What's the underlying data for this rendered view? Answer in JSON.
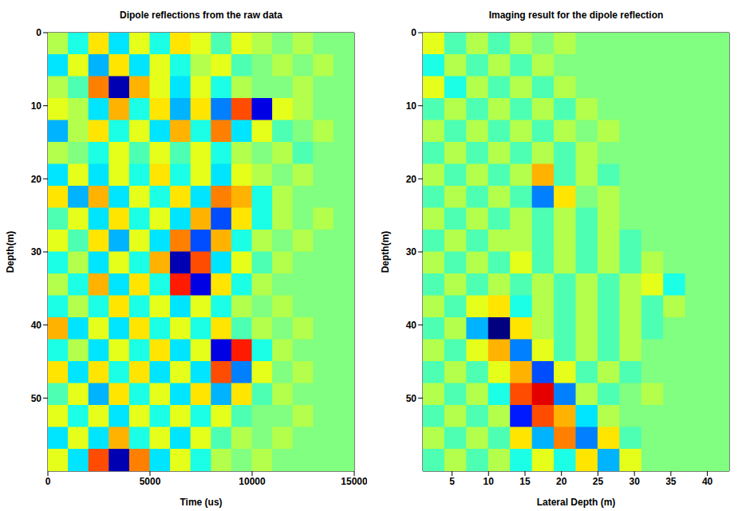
{
  "chart_data": [
    {
      "type": "heatmap",
      "title": "Dipole reflections from the raw data",
      "x_label": "Time (us)",
      "y_label": "Depth(m)",
      "xlim": [
        0,
        15000
      ],
      "xticks": [
        0,
        5000,
        10000,
        15000
      ],
      "ylim": [
        0,
        60
      ],
      "yticks": [
        0,
        10,
        20,
        30,
        40,
        50
      ],
      "zlim": [
        -1,
        1
      ],
      "x": [
        500,
        1500,
        2500,
        3500,
        4500,
        5500,
        6500,
        7500,
        8500,
        9500,
        10500,
        11500,
        12500,
        13500,
        14500
      ],
      "y": [
        1.5,
        4.5,
        7.5,
        10.5,
        13.5,
        16.5,
        19.5,
        22.5,
        25.5,
        28.5,
        31.5,
        34.5,
        37.5,
        40.5,
        43.5,
        46.5,
        49.5,
        52.5,
        55.5,
        58.5
      ],
      "z": [
        [
          0.1,
          -0.2,
          0.3,
          -0.3,
          0.2,
          -0.2,
          0.3,
          0.2,
          -0.1,
          0.2,
          0.1,
          0,
          0.1,
          0,
          0
        ],
        [
          -0.3,
          0.2,
          -0.4,
          0.3,
          -0.3,
          0.2,
          -0.2,
          0.1,
          0.2,
          -0.1,
          0,
          0.1,
          0,
          0.1,
          0
        ],
        [
          0.1,
          -0.1,
          0.5,
          -0.9,
          0.4,
          0.2,
          -0.3,
          0.2,
          -0.2,
          0.1,
          0,
          0,
          0.1,
          0,
          0
        ],
        [
          0.2,
          0.1,
          -0.3,
          0.4,
          -0.2,
          0.3,
          -0.4,
          0.3,
          -0.5,
          0.6,
          -0.8,
          0.2,
          0.1,
          0,
          0
        ],
        [
          -0.4,
          0.1,
          0.3,
          -0.2,
          0.2,
          -0.3,
          0.4,
          -0.2,
          0.5,
          -0.3,
          0.2,
          -0.1,
          0,
          0.1,
          0
        ],
        [
          0.1,
          0,
          -0.2,
          0.2,
          -0.1,
          0.2,
          -0.1,
          0.2,
          -0.2,
          0.1,
          0,
          0.1,
          -0.1,
          0,
          0
        ],
        [
          -0.3,
          0.2,
          -0.3,
          0.2,
          -0.2,
          0.3,
          -0.2,
          0.2,
          -0.3,
          0.2,
          0.1,
          0,
          0.1,
          0,
          0
        ],
        [
          0.3,
          -0.4,
          0.4,
          -0.3,
          0.2,
          -0.2,
          0.3,
          -0.3,
          0.5,
          0.4,
          -0.2,
          0.1,
          0,
          0,
          0
        ],
        [
          -0.1,
          0.2,
          -0.3,
          0.3,
          -0.2,
          0.2,
          -0.3,
          0.4,
          -0.6,
          0.3,
          -0.2,
          0.1,
          0,
          0.1,
          0
        ],
        [
          0.2,
          -0.1,
          0.3,
          -0.4,
          0.2,
          -0.3,
          0.5,
          -0.6,
          0.4,
          -0.2,
          0.1,
          0,
          0.1,
          0,
          0
        ],
        [
          -0.2,
          0.1,
          -0.3,
          0.2,
          -0.2,
          0.4,
          -0.9,
          0.6,
          -0.3,
          0.2,
          -0.1,
          0.1,
          0,
          0,
          0
        ],
        [
          0.1,
          -0.2,
          0.4,
          -0.3,
          0.3,
          -0.2,
          0.7,
          -0.8,
          0.3,
          -0.2,
          0.1,
          0,
          0,
          0,
          0
        ],
        [
          -0.2,
          0.1,
          -0.2,
          0.3,
          -0.2,
          0.2,
          -0.3,
          0.2,
          -0.2,
          0.1,
          0,
          0.1,
          0,
          0,
          0
        ],
        [
          0.4,
          -0.3,
          0.2,
          -0.3,
          0.3,
          -0.2,
          0.2,
          -0.2,
          0.3,
          -0.1,
          0.1,
          0,
          0.1,
          0,
          0
        ],
        [
          -0.2,
          0.1,
          -0.3,
          0.2,
          -0.2,
          0.3,
          -0.3,
          0.2,
          -0.8,
          0.7,
          -0.2,
          0.1,
          0,
          0,
          0
        ],
        [
          0.3,
          -0.3,
          0.3,
          -0.2,
          0.3,
          -0.3,
          0.2,
          -0.3,
          0.6,
          -0.5,
          0.2,
          0,
          0.1,
          0,
          0
        ],
        [
          -0.1,
          0.2,
          -0.4,
          0.3,
          -0.2,
          0.2,
          -0.3,
          0.3,
          -0.4,
          0.3,
          -0.1,
          0.1,
          0,
          0,
          0
        ],
        [
          0.2,
          -0.2,
          0.2,
          -0.3,
          0.2,
          -0.2,
          0.2,
          -0.2,
          0.2,
          -0.1,
          0,
          0,
          0.1,
          0,
          0
        ],
        [
          -0.3,
          0.2,
          -0.3,
          0.4,
          -0.2,
          0.2,
          -0.3,
          0.2,
          -0.1,
          0.1,
          0,
          0.1,
          0,
          0,
          0
        ],
        [
          0.2,
          -0.3,
          0.6,
          -0.9,
          0.5,
          -0.3,
          0.2,
          -0.2,
          0.1,
          0,
          0.1,
          0,
          0,
          0,
          0
        ]
      ]
    },
    {
      "type": "heatmap",
      "title": "Imaging result for the dipole reflection",
      "x_label": "Lateral Depth (m)",
      "y_label": "Depth(m)",
      "xlim": [
        1,
        43
      ],
      "xticks": [
        5,
        10,
        15,
        20,
        25,
        30,
        35,
        40
      ],
      "ylim": [
        0,
        60
      ],
      "yticks": [
        0,
        10,
        20,
        30,
        40,
        50
      ],
      "zlim": [
        -1,
        1
      ],
      "x": [
        2.5,
        5.5,
        8.5,
        11.5,
        14.5,
        17.5,
        20.5,
        23.5,
        26.5,
        29.5,
        32.5,
        35.5,
        38.5,
        41.5
      ],
      "y": [
        1.5,
        4.5,
        7.5,
        10.5,
        13.5,
        16.5,
        19.5,
        22.5,
        25.5,
        28.5,
        31.5,
        34.5,
        37.5,
        40.5,
        43.5,
        46.5,
        49.5,
        52.5,
        55.5,
        58.5
      ],
      "z": [
        [
          0.2,
          -0.1,
          0.1,
          -0.1,
          0.1,
          0,
          0.1,
          0,
          0,
          0,
          0,
          0,
          0,
          0
        ],
        [
          -0.2,
          0.1,
          -0.1,
          0.1,
          -0.1,
          0.1,
          0,
          0,
          0,
          0,
          0,
          0,
          0,
          0
        ],
        [
          0.2,
          -0.2,
          0.1,
          -0.1,
          0.1,
          -0.1,
          0.1,
          0,
          0,
          0,
          0,
          0,
          0,
          0
        ],
        [
          -0.1,
          0.1,
          -0.1,
          0.1,
          -0.1,
          0.1,
          -0.1,
          0.1,
          0,
          0,
          0,
          0,
          0,
          0
        ],
        [
          0.1,
          -0.1,
          0.1,
          -0.1,
          0.1,
          -0.1,
          0.1,
          0,
          0.1,
          0,
          0,
          0,
          0,
          0
        ],
        [
          -0.1,
          0.1,
          -0.1,
          0.1,
          -0.1,
          0.1,
          -0.1,
          0.1,
          0,
          0,
          0,
          0,
          0,
          0
        ],
        [
          0.1,
          -0.1,
          0.1,
          -0.1,
          0.1,
          0.4,
          -0.1,
          0.1,
          -0.1,
          0,
          0,
          0,
          0,
          0
        ],
        [
          -0.1,
          0.1,
          -0.1,
          0.1,
          -0.1,
          -0.5,
          0.3,
          0,
          0.1,
          0,
          0,
          0,
          0,
          0
        ],
        [
          0.1,
          -0.1,
          0.1,
          -0.1,
          0.1,
          -0.1,
          0.1,
          -0.1,
          0.1,
          0,
          0,
          0,
          0,
          0
        ],
        [
          -0.1,
          0.1,
          -0.1,
          0.1,
          0.1,
          -0.1,
          0.1,
          -0.1,
          0.1,
          -0.1,
          0,
          0,
          0,
          0
        ],
        [
          0.1,
          -0.1,
          0.1,
          -0.1,
          0.2,
          -0.1,
          0.1,
          -0.1,
          0.1,
          -0.1,
          0.1,
          0,
          0,
          0
        ],
        [
          -0.1,
          0.1,
          -0.1,
          0.1,
          -0.1,
          0.1,
          -0.1,
          0.1,
          -0.1,
          0.1,
          0.2,
          -0.2,
          0,
          0
        ],
        [
          0.1,
          -0.1,
          0.2,
          0.3,
          -0.2,
          0.1,
          -0.1,
          0.1,
          -0.1,
          0.1,
          -0.1,
          0.1,
          0,
          0
        ],
        [
          -0.1,
          0.1,
          -0.4,
          -1,
          0.3,
          0.1,
          -0.1,
          0.1,
          -0.1,
          0.1,
          -0.1,
          0,
          0,
          0
        ],
        [
          0.1,
          -0.1,
          0.2,
          0.4,
          -0.5,
          0.2,
          -0.1,
          0.1,
          -0.1,
          0.1,
          0,
          0,
          0,
          0
        ],
        [
          -0.1,
          0.1,
          -0.1,
          0.2,
          0.4,
          -0.6,
          0.2,
          -0.1,
          0.1,
          -0.1,
          0,
          0,
          0,
          0
        ],
        [
          0.1,
          -0.1,
          0.1,
          -0.2,
          0.6,
          0.8,
          -0.5,
          0.1,
          -0.1,
          0,
          0.1,
          0,
          0,
          0
        ],
        [
          -0.1,
          0.1,
          -0.1,
          0.1,
          -0.7,
          0.6,
          0.4,
          -0.3,
          0.1,
          0,
          0,
          0,
          0,
          0
        ],
        [
          0.1,
          -0.1,
          0.1,
          -0.1,
          0.3,
          -0.4,
          0.5,
          -0.5,
          0.3,
          -0.1,
          0,
          0,
          0,
          0
        ],
        [
          -0.1,
          0.1,
          -0.1,
          0.1,
          -0.2,
          0.2,
          -0.2,
          0.3,
          -0.4,
          0.2,
          0,
          0,
          0,
          0
        ]
      ]
    }
  ]
}
